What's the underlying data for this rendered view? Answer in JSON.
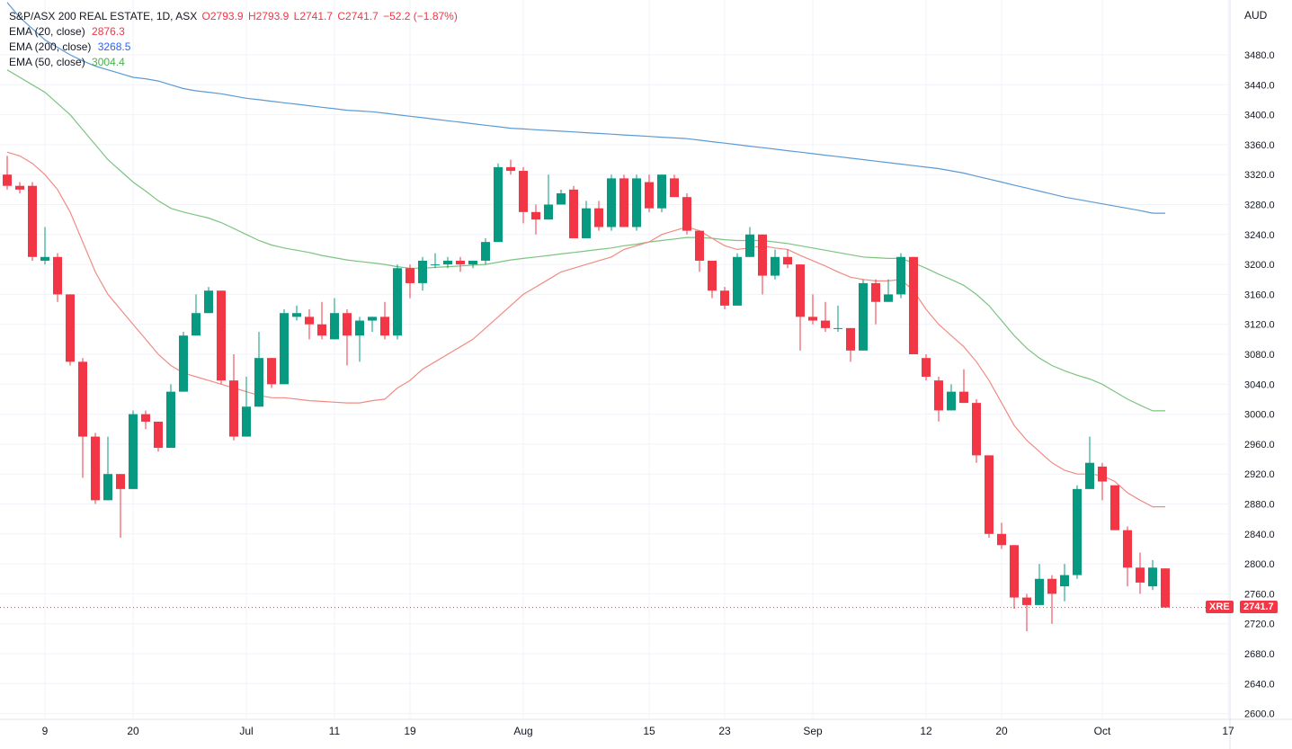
{
  "header": {
    "symbol": "S&P/ASX 200 REAL ESTATE, 1D, ASX",
    "open": "O2793.9",
    "high": "H2793.9",
    "low": "L2741.7",
    "close": "C2741.7",
    "change": "−52.2 (−1.87%)"
  },
  "indicators": [
    {
      "label": "EMA (20, close)",
      "value": "2876.3",
      "color": "#f23645"
    },
    {
      "label": "EMA (200, close)",
      "value": "3268.5",
      "color": "#2962ff"
    },
    {
      "label": "EMA (50, close)",
      "value": "3004.4",
      "color": "#4caf50"
    }
  ],
  "axis": {
    "currency": "AUD",
    "ticker_tag": "XRE",
    "last_price": "2741.7"
  },
  "colors": {
    "up": "#089981",
    "down": "#f23645",
    "ema20": "#f28b82",
    "ema200": "#5b9bd5",
    "ema50": "#7cc47f"
  },
  "chart_data": {
    "type": "candlestick",
    "y_ticks": [
      2600,
      2640,
      2680,
      2720,
      2760,
      2800,
      2840,
      2880,
      2920,
      2960,
      3000,
      3040,
      3080,
      3120,
      3160,
      3200,
      3240,
      3280,
      3320,
      3360,
      3400,
      3440,
      3480
    ],
    "x_ticks": [
      {
        "label": "9",
        "i": 3
      },
      {
        "label": "20",
        "i": 10
      },
      {
        "label": "Jul",
        "i": 19
      },
      {
        "label": "11",
        "i": 26
      },
      {
        "label": "19",
        "i": 32
      },
      {
        "label": "Aug",
        "i": 41
      },
      {
        "label": "15",
        "i": 51
      },
      {
        "label": "23",
        "i": 57
      },
      {
        "label": "Sep",
        "i": 64
      },
      {
        "label": "12",
        "i": 73
      },
      {
        "label": "20",
        "i": 79
      },
      {
        "label": "Oct",
        "i": 87
      },
      {
        "label": "17",
        "i": 97
      }
    ],
    "candles": [
      [
        3320,
        3345,
        3300,
        3305
      ],
      [
        3305,
        3310,
        3295,
        3300
      ],
      [
        3305,
        3310,
        3205,
        3210
      ],
      [
        3205,
        3250,
        3200,
        3210
      ],
      [
        3210,
        3215,
        3150,
        3160
      ],
      [
        3160,
        3160,
        3065,
        3070
      ],
      [
        3070,
        3075,
        2915,
        2970
      ],
      [
        2970,
        2975,
        2880,
        2885
      ],
      [
        2885,
        2970,
        2885,
        2920
      ],
      [
        2920,
        2920,
        2835,
        2900
      ],
      [
        2900,
        3005,
        2900,
        3000
      ],
      [
        3000,
        3005,
        2980,
        2990
      ],
      [
        2990,
        2990,
        2950,
        2955
      ],
      [
        2955,
        3040,
        2955,
        3030
      ],
      [
        3030,
        3110,
        3030,
        3105
      ],
      [
        3105,
        3160,
        3105,
        3135
      ],
      [
        3135,
        3170,
        3135,
        3165
      ],
      [
        3165,
        3165,
        3040,
        3045
      ],
      [
        3045,
        3080,
        2965,
        2970
      ],
      [
        2970,
        3050,
        2970,
        3010
      ],
      [
        3010,
        3110,
        3010,
        3075
      ],
      [
        3075,
        3075,
        3035,
        3040
      ],
      [
        3040,
        3140,
        3040,
        3135
      ],
      [
        3130,
        3145,
        3125,
        3135
      ],
      [
        3130,
        3140,
        3100,
        3120
      ],
      [
        3120,
        3150,
        3100,
        3105
      ],
      [
        3100,
        3155,
        3100,
        3135
      ],
      [
        3135,
        3140,
        3065,
        3105
      ],
      [
        3105,
        3130,
        3070,
        3125
      ],
      [
        3125,
        3130,
        3110,
        3130
      ],
      [
        3130,
        3150,
        3100,
        3105
      ],
      [
        3105,
        3200,
        3100,
        3195
      ],
      [
        3195,
        3200,
        3155,
        3175
      ],
      [
        3175,
        3210,
        3165,
        3205
      ],
      [
        3200,
        3215,
        3195,
        3200
      ],
      [
        3200,
        3210,
        3195,
        3205
      ],
      [
        3205,
        3210,
        3190,
        3200
      ],
      [
        3200,
        3205,
        3195,
        3205
      ],
      [
        3205,
        3235,
        3200,
        3230
      ],
      [
        3230,
        3335,
        3230,
        3330
      ],
      [
        3330,
        3340,
        3320,
        3325
      ],
      [
        3325,
        3330,
        3255,
        3270
      ],
      [
        3270,
        3280,
        3240,
        3260
      ],
      [
        3260,
        3320,
        3260,
        3280
      ],
      [
        3280,
        3300,
        3280,
        3295
      ],
      [
        3300,
        3305,
        3235,
        3235
      ],
      [
        3235,
        3285,
        3235,
        3275
      ],
      [
        3275,
        3285,
        3245,
        3250
      ],
      [
        3250,
        3320,
        3245,
        3315
      ],
      [
        3315,
        3320,
        3250,
        3250
      ],
      [
        3250,
        3320,
        3245,
        3315
      ],
      [
        3310,
        3320,
        3270,
        3275
      ],
      [
        3275,
        3320,
        3270,
        3320
      ],
      [
        3315,
        3320,
        3290,
        3290
      ],
      [
        3290,
        3295,
        3240,
        3245
      ],
      [
        3245,
        3245,
        3190,
        3205
      ],
      [
        3205,
        3205,
        3155,
        3165
      ],
      [
        3165,
        3170,
        3140,
        3145
      ],
      [
        3145,
        3215,
        3145,
        3210
      ],
      [
        3210,
        3250,
        3210,
        3240
      ],
      [
        3240,
        3240,
        3160,
        3185
      ],
      [
        3185,
        3220,
        3180,
        3210
      ],
      [
        3210,
        3220,
        3195,
        3200
      ],
      [
        3200,
        3200,
        3085,
        3130
      ],
      [
        3130,
        3160,
        3120,
        3125
      ],
      [
        3125,
        3150,
        3110,
        3115
      ],
      [
        3115,
        3145,
        3110,
        3115
      ],
      [
        3115,
        3115,
        3070,
        3085
      ],
      [
        3085,
        3180,
        3085,
        3175
      ],
      [
        3175,
        3180,
        3120,
        3150
      ],
      [
        3150,
        3180,
        3150,
        3160
      ],
      [
        3160,
        3215,
        3155,
        3210
      ],
      [
        3210,
        3210,
        3080,
        3080
      ],
      [
        3075,
        3080,
        3045,
        3050
      ],
      [
        3045,
        3050,
        2990,
        3005
      ],
      [
        3005,
        3040,
        3005,
        3030
      ],
      [
        3030,
        3060,
        3015,
        3015
      ],
      [
        3015,
        3020,
        2935,
        2945
      ],
      [
        2945,
        2945,
        2835,
        2840
      ],
      [
        2840,
        2855,
        2820,
        2825
      ],
      [
        2825,
        2825,
        2740,
        2755
      ],
      [
        2755,
        2760,
        2710,
        2745
      ],
      [
        2745,
        2800,
        2745,
        2780
      ],
      [
        2780,
        2785,
        2720,
        2760
      ],
      [
        2770,
        2800,
        2750,
        2785
      ],
      [
        2785,
        2905,
        2780,
        2900
      ],
      [
        2900,
        2970,
        2900,
        2935
      ],
      [
        2930,
        2935,
        2885,
        2910
      ],
      [
        2905,
        2905,
        2845,
        2845
      ],
      [
        2845,
        2850,
        2770,
        2795
      ],
      [
        2795,
        2815,
        2760,
        2775
      ],
      [
        2770,
        2805,
        2765,
        2795
      ],
      [
        2793.9,
        2793.9,
        2741.7,
        2741.7
      ]
    ],
    "ema20": [
      3350,
      3345,
      3335,
      3320,
      3300,
      3270,
      3230,
      3190,
      3160,
      3140,
      3120,
      3100,
      3080,
      3065,
      3055,
      3050,
      3045,
      3040,
      3035,
      3030,
      3025,
      3022,
      3022,
      3020,
      3018,
      3017,
      3016,
      3015,
      3015,
      3018,
      3020,
      3035,
      3045,
      3060,
      3070,
      3080,
      3090,
      3100,
      3115,
      3130,
      3145,
      3160,
      3170,
      3180,
      3190,
      3195,
      3200,
      3205,
      3210,
      3220,
      3225,
      3230,
      3240,
      3245,
      3250,
      3245,
      3235,
      3225,
      3220,
      3222,
      3225,
      3222,
      3220,
      3212,
      3205,
      3198,
      3190,
      3183,
      3180,
      3178,
      3178,
      3180,
      3165,
      3140,
      3120,
      3105,
      3090,
      3070,
      3045,
      3015,
      2985,
      2965,
      2950,
      2935,
      2925,
      2920,
      2920,
      2918,
      2910,
      2895,
      2885,
      2876.3,
      2876.3
    ],
    "ema200": [
      3550,
      3530,
      3515,
      3500,
      3490,
      3480,
      3472,
      3465,
      3460,
      3455,
      3450,
      3448,
      3445,
      3440,
      3435,
      3432,
      3430,
      3428,
      3425,
      3422,
      3420,
      3418,
      3416,
      3414,
      3412,
      3410,
      3408,
      3406,
      3405,
      3404,
      3402,
      3400,
      3398,
      3396,
      3394,
      3392,
      3390,
      3388,
      3386,
      3384,
      3382,
      3381,
      3380,
      3379,
      3378,
      3377,
      3376,
      3375,
      3374,
      3373,
      3372,
      3371,
      3370,
      3369,
      3368,
      3366,
      3364,
      3362,
      3360,
      3358,
      3356,
      3354,
      3352,
      3350,
      3348,
      3346,
      3344,
      3342,
      3340,
      3338,
      3336,
      3334,
      3332,
      3330,
      3328,
      3325,
      3322,
      3318,
      3314,
      3310,
      3306,
      3302,
      3298,
      3294,
      3290,
      3287,
      3284,
      3281,
      3278,
      3275,
      3272,
      3268.5,
      3268.5
    ],
    "ema50": [
      3460,
      3450,
      3440,
      3430,
      3415,
      3400,
      3380,
      3360,
      3340,
      3325,
      3310,
      3298,
      3285,
      3275,
      3270,
      3266,
      3262,
      3256,
      3248,
      3240,
      3232,
      3226,
      3222,
      3219,
      3216,
      3212,
      3209,
      3206,
      3204,
      3202,
      3200,
      3197,
      3195,
      3195,
      3196,
      3197,
      3198,
      3199,
      3200,
      3203,
      3206,
      3208,
      3210,
      3212,
      3214,
      3216,
      3218,
      3220,
      3222,
      3225,
      3227,
      3230,
      3232,
      3234,
      3236,
      3236,
      3235,
      3233,
      3232,
      3232,
      3232,
      3230,
      3228,
      3225,
      3222,
      3219,
      3216,
      3213,
      3210,
      3209,
      3208,
      3208,
      3202,
      3195,
      3187,
      3180,
      3172,
      3160,
      3145,
      3125,
      3105,
      3088,
      3075,
      3065,
      3058,
      3052,
      3047,
      3040,
      3030,
      3020,
      3012,
      3004.4,
      3004.4
    ]
  }
}
